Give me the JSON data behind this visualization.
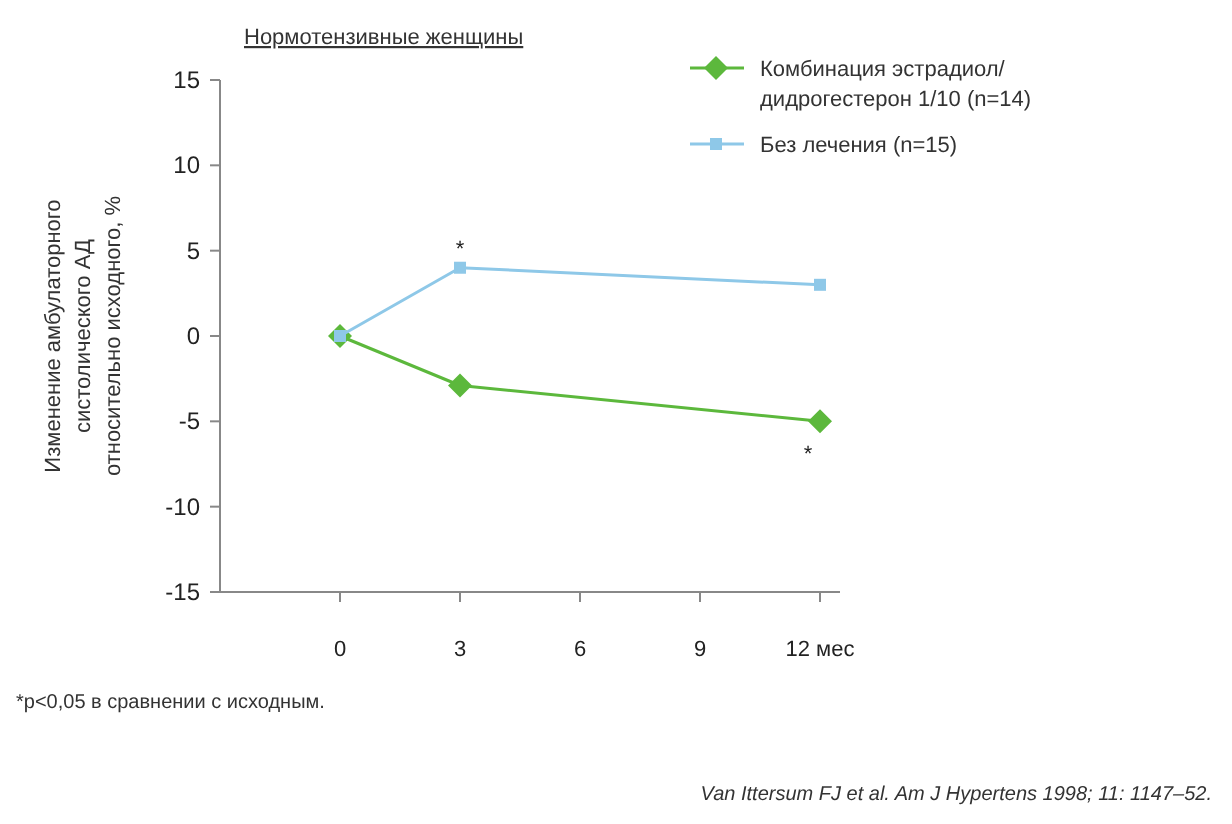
{
  "chart_data": {
    "type": "line",
    "title": "Нормотензивные женщины",
    "ylabel": "Изменение амбулаторного систолического АД относительно исходного, %",
    "x": [
      0,
      3,
      12
    ],
    "series": [
      {
        "name": "Комбинация эстрадиол/ дидрогестерон 1/10 (n=14)",
        "color": "#5cb83c",
        "values": [
          0,
          -2.9,
          -5
        ],
        "marker": "diamond"
      },
      {
        "name": "Без лечения (n=15)",
        "color": "#8ec8e8",
        "values": [
          0,
          4,
          3
        ],
        "marker": "square"
      }
    ],
    "xlim": [
      -3,
      12.5
    ],
    "xticks": [
      0,
      3,
      6,
      9,
      {
        "value": 12,
        "label": "12 мес"
      }
    ],
    "ylim": [
      -15,
      15
    ],
    "yticks": [
      -15,
      -10,
      -5,
      0,
      5,
      10,
      15
    ],
    "grid": false,
    "legend": "top right",
    "annotations": [
      {
        "text": "*",
        "x": 3,
        "y": 4
      },
      {
        "text": "*",
        "x": 12,
        "y": -5
      },
      "*p<0,05 в сравнении с исходным.",
      "Van Ittersum FJ et al. Am J Hypertens 1998; 11: 1147–52."
    ]
  }
}
